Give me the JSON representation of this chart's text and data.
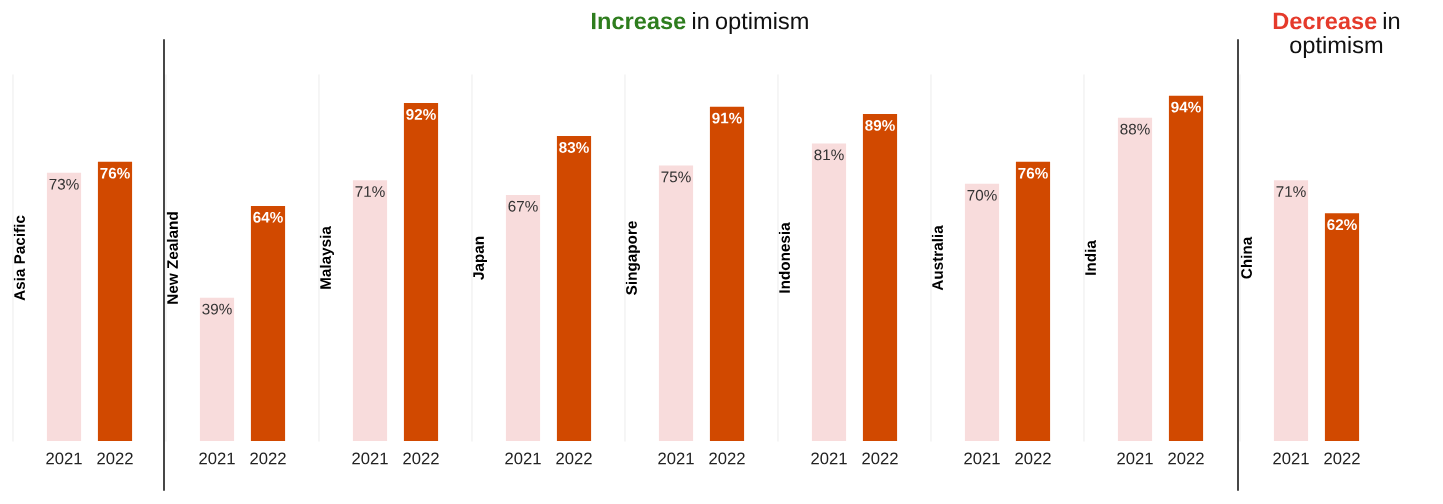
{
  "chart_data": [
    {
      "type": "bar",
      "ylabel": "Asia Pacific",
      "categories": [
        "2021",
        "2022"
      ],
      "values": [
        73,
        76
      ],
      "value_labels": [
        "73%",
        "76%"
      ],
      "colors": [
        "#f8dcdc",
        "#d14900"
      ],
      "tick_labels": "x"
    },
    {
      "type": "bar",
      "ylabel": "New Zealand",
      "categories": [
        "2021",
        "2022"
      ],
      "values": [
        39,
        64
      ],
      "value_labels": [
        "39%",
        "64%"
      ],
      "colors": [
        "#f8dcdc",
        "#d14900"
      ],
      "tick_labels": "x",
      "annotations": [
        "Increase in optimism"
      ]
    },
    {
      "type": "bar",
      "ylabel": "Malaysia",
      "categories": [
        "2021",
        "2022"
      ],
      "values": [
        71,
        92
      ],
      "value_labels": [
        "71%",
        "92%"
      ],
      "colors": [
        "#f8dcdc",
        "#d14900"
      ],
      "tick_labels": "x"
    },
    {
      "type": "bar",
      "ylabel": "Japan",
      "categories": [
        "2021",
        "2022"
      ],
      "values": [
        67,
        83
      ],
      "value_labels": [
        "67%",
        "83%"
      ],
      "colors": [
        "#f8dcdc",
        "#d14900"
      ],
      "tick_labels": "x"
    },
    {
      "type": "bar",
      "ylabel": "Singapore",
      "categories": [
        "2021",
        "2022"
      ],
      "values": [
        75,
        91
      ],
      "value_labels": [
        "75%",
        "91%"
      ],
      "colors": [
        "#f8dcdc",
        "#d14900"
      ],
      "tick_labels": "x"
    },
    {
      "type": "bar",
      "ylabel": "Indonesia",
      "categories": [
        "2021",
        "2022"
      ],
      "values": [
        81,
        89
      ],
      "value_labels": [
        "81%",
        "89%"
      ],
      "colors": [
        "#f8dcdc",
        "#d14900"
      ],
      "tick_labels": "x"
    },
    {
      "type": "bar",
      "ylabel": "Australia",
      "categories": [
        "2021",
        "2022"
      ],
      "values": [
        70,
        76
      ],
      "value_labels": [
        "70%",
        "76%"
      ],
      "colors": [
        "#f8dcdc",
        "#d14900"
      ],
      "tick_labels": "x"
    },
    {
      "type": "bar",
      "ylabel": "India",
      "categories": [
        "2021",
        "2022"
      ],
      "values": [
        88,
        94
      ],
      "value_labels": [
        "88%",
        "94%"
      ],
      "colors": [
        "#f8dcdc",
        "#d14900"
      ],
      "tick_labels": "x"
    },
    {
      "type": "bar",
      "ylabel": "China",
      "categories": [
        "2021",
        "2022"
      ],
      "values": [
        71,
        62
      ],
      "value_labels": [
        "71%",
        "62%"
      ],
      "colors": [
        "#f8dcdc",
        "#d14900"
      ],
      "tick_labels": "x",
      "annotations": [
        "Decrease in optimism"
      ]
    }
  ]
}
